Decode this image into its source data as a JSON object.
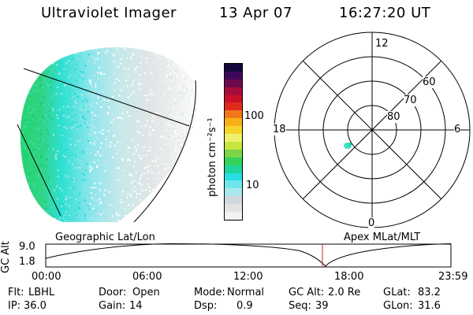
{
  "header": {
    "instrument": "Ultraviolet Imager",
    "date": "13 Apr 07",
    "time": "16:27:20 UT"
  },
  "colorbar": {
    "unit_label": "photon cm⁻²s⁻¹",
    "ticks": [
      "100",
      "10"
    ],
    "colors": [
      "#f2f2f2",
      "#e2e2e2",
      "#cfd9db",
      "#a8e8ee",
      "#6ee6ec",
      "#24e0e0",
      "#1ed69c",
      "#32d25a",
      "#7ad648",
      "#c8e640",
      "#eef070",
      "#f6d42a",
      "#f8b016",
      "#f0781a",
      "#e02a1a",
      "#c8102a",
      "#a80c3c",
      "#6c0a50",
      "#40085a",
      "#14083a"
    ]
  },
  "polar_plot": {
    "mlt_labels": [
      "12",
      "18",
      "6",
      "0"
    ],
    "lat_labels": [
      "60",
      "70",
      "80"
    ]
  },
  "timeline": {
    "left_label": "Geographic Lat/Lon",
    "right_label": "Apex MLat/MLT",
    "axis_title": "GC Alt",
    "y_ticks": [
      "9.0",
      "1.8"
    ],
    "x_ticks": [
      "00:00",
      "06:00",
      "12:00",
      "18:00",
      "23:59"
    ],
    "marker_color": "#d02020"
  },
  "status": [
    [
      {
        "key": "Flt:",
        "value": "LBHL"
      },
      {
        "key": "Door:",
        "value": "Open"
      },
      {
        "key": "Mode:",
        "value": "Normal"
      },
      {
        "key": "GC Alt:",
        "value": "2.0 Re"
      },
      {
        "key": "GLat:",
        "value": "83.2"
      }
    ],
    [
      {
        "key": "IP:",
        "value": "36.0"
      },
      {
        "key": "Gain:",
        "value": "14"
      },
      {
        "key": "Dsp:",
        "value": "0.9"
      },
      {
        "key": "Seq:",
        "value": "39"
      },
      {
        "key": "GLon:",
        "value": "31.6"
      }
    ]
  ]
}
